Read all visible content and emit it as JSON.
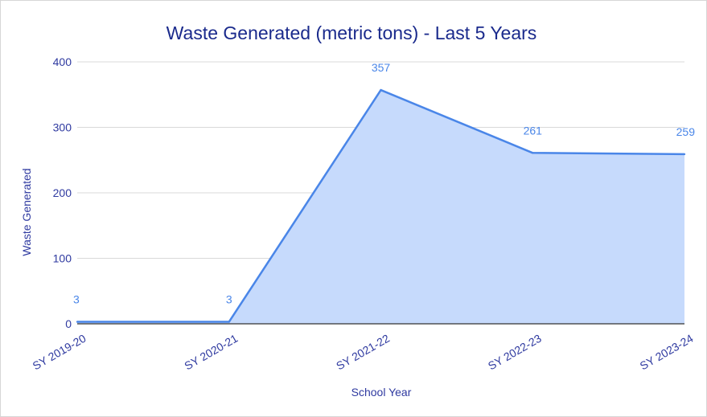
{
  "chart_data": {
    "type": "area",
    "title": "Waste Generated (metric tons) - Last 5 Years",
    "xlabel": "School Year",
    "ylabel": "Waste Generated",
    "categories": [
      "SY 2019-20",
      "SY 2020-21",
      "SY 2021-22",
      "SY 2022-23",
      "SY 2023-24"
    ],
    "series": [
      {
        "values": [
          3,
          3,
          357,
          261,
          259
        ],
        "color": "#4a86e8",
        "fill": "#c6dafc"
      }
    ],
    "data_labels": [
      "3",
      "3",
      "357",
      "261",
      "259"
    ],
    "ylim": [
      0,
      400
    ],
    "yticks": [
      "0",
      "100",
      "200",
      "300",
      "400"
    ],
    "grid": true,
    "legend": "none"
  }
}
